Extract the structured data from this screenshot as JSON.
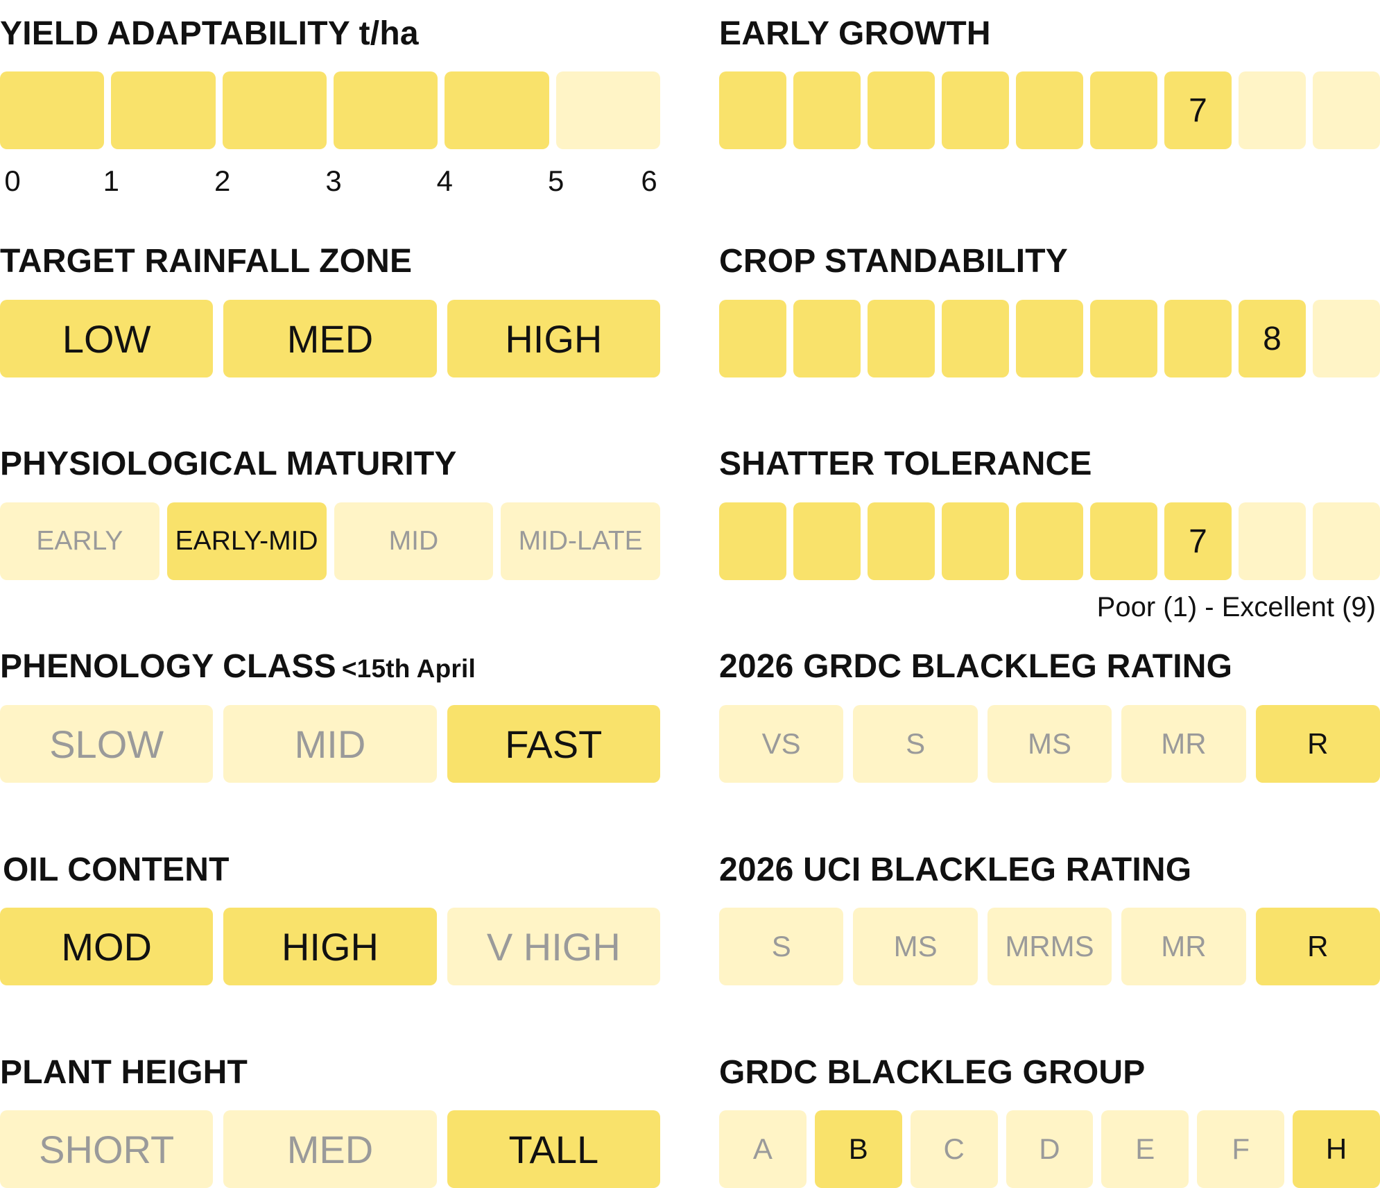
{
  "colors": {
    "selected": "#f9e26b",
    "unselected": "#fff4c6",
    "selected_text": "#111111",
    "unselected_text": "#9a9a9a"
  },
  "yield_adaptability": {
    "title": "YIELD ADAPTABILITY t/ha",
    "ticks": [
      "0",
      "1",
      "2",
      "3",
      "4",
      "5",
      "6"
    ],
    "value_tph": 5,
    "segments": 6
  },
  "target_rainfall_zone": {
    "title": "TARGET RAINFALL ZONE",
    "options": [
      {
        "label": "LOW",
        "selected": true
      },
      {
        "label": "MED",
        "selected": true
      },
      {
        "label": "HIGH",
        "selected": true
      }
    ]
  },
  "physiological_maturity": {
    "title": "PHYSIOLOGICAL MATURITY",
    "options": [
      {
        "label": "EARLY",
        "selected": false
      },
      {
        "label": "EARLY-MID",
        "selected": true
      },
      {
        "label": "MID",
        "selected": false
      },
      {
        "label": "MID-LATE",
        "selected": false
      }
    ]
  },
  "phenology_class": {
    "title": "PHENOLOGY CLASS",
    "subtitle": "<15th April",
    "options": [
      {
        "label": "SLOW",
        "selected": false
      },
      {
        "label": "MID",
        "selected": false
      },
      {
        "label": "FAST",
        "selected": true
      }
    ]
  },
  "oil_content": {
    "title": "OIL CONTENT",
    "options": [
      {
        "label": "MOD",
        "selected": true
      },
      {
        "label": "HIGH",
        "selected": true
      },
      {
        "label": "V HIGH",
        "selected": false
      }
    ]
  },
  "plant_height": {
    "title": "PLANT HEIGHT",
    "options": [
      {
        "label": "SHORT",
        "selected": false
      },
      {
        "label": "MED",
        "selected": false
      },
      {
        "label": "TALL",
        "selected": true
      }
    ]
  },
  "early_growth": {
    "title": "EARLY GROWTH",
    "value": 7,
    "value_label": "7",
    "max": 9
  },
  "crop_standability": {
    "title": "CROP STANDABILITY",
    "value": 8,
    "value_label": "8",
    "max": 9
  },
  "shatter_tolerance": {
    "title": "SHATTER TOLERANCE",
    "value": 7,
    "value_label": "7",
    "max": 9
  },
  "scale_legend": "Poor (1) - Excellent (9)",
  "grdc_blackleg_rating": {
    "title": "2026 GRDC BLACKLEG RATING",
    "options": [
      {
        "label": "VS",
        "selected": false
      },
      {
        "label": "S",
        "selected": false
      },
      {
        "label": "MS",
        "selected": false
      },
      {
        "label": "MR",
        "selected": false
      },
      {
        "label": "R",
        "selected": true
      }
    ]
  },
  "uci_blackleg_rating": {
    "title": "2026 UCI BLACKLEG RATING",
    "options": [
      {
        "label": "S",
        "selected": false
      },
      {
        "label": "MS",
        "selected": false
      },
      {
        "label": "MRMS",
        "selected": false
      },
      {
        "label": "MR",
        "selected": false
      },
      {
        "label": "R",
        "selected": true
      }
    ]
  },
  "grdc_blackleg_group": {
    "title": "GRDC BLACKLEG GROUP",
    "options": [
      {
        "label": "A",
        "selected": false
      },
      {
        "label": "B",
        "selected": true
      },
      {
        "label": "C",
        "selected": false
      },
      {
        "label": "D",
        "selected": false
      },
      {
        "label": "E",
        "selected": false
      },
      {
        "label": "F",
        "selected": false
      },
      {
        "label": "H",
        "selected": true
      }
    ]
  }
}
